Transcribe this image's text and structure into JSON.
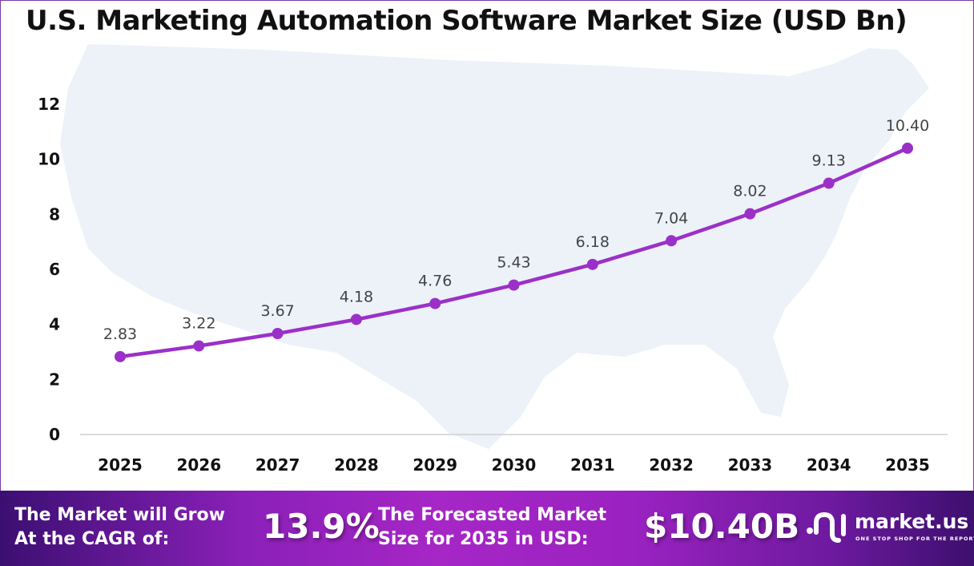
{
  "chart_data": {
    "type": "line",
    "title": "U.S. Marketing Automation Software Market Size (USD Bn)",
    "categories": [
      "2025",
      "2026",
      "2027",
      "2028",
      "2029",
      "2030",
      "2031",
      "2032",
      "2033",
      "2034",
      "2035"
    ],
    "values": [
      2.83,
      3.22,
      3.67,
      4.18,
      4.76,
      5.43,
      6.18,
      7.04,
      8.02,
      9.13,
      10.4
    ],
    "value_labels": [
      "2.83",
      "3.22",
      "3.67",
      "4.18",
      "4.76",
      "5.43",
      "6.18",
      "7.04",
      "8.02",
      "9.13",
      "10.40"
    ],
    "ylim": [
      0,
      12
    ],
    "yticks": [
      "0",
      "2",
      "4",
      "6",
      "8",
      "10",
      "12"
    ],
    "grid": false,
    "line_color": "#9b30c8",
    "background": "US map silhouette"
  },
  "footer": {
    "cagr_label_1": "The Market will Grow",
    "cagr_label_2": "At the CAGR of:",
    "cagr_value": "13.9%",
    "forecast_label_1": "The Forecasted Market",
    "forecast_label_2": "Size for 2035 in USD:",
    "forecast_value": "$10.40B",
    "logo_name": "market.us",
    "logo_tagline": "ONE STOP SHOP FOR THE REPORTS"
  }
}
